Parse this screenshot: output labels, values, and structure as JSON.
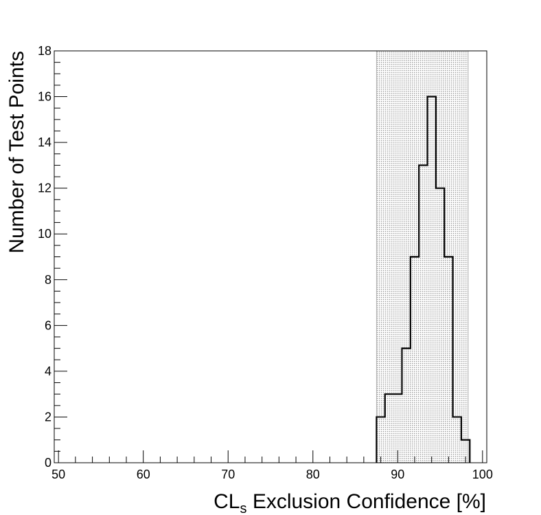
{
  "chart_data": {
    "type": "histogram",
    "title": "",
    "xlabel": {
      "prefix": "CL",
      "subscript": "s",
      "suffix": " Exclusion Confidence [%]"
    },
    "ylabel": "Number of Test Points",
    "xlim": [
      49.5,
      100.5
    ],
    "ylim": [
      0,
      18
    ],
    "x_ticks": [
      50,
      60,
      70,
      80,
      90,
      100
    ],
    "y_ticks": [
      0,
      2,
      4,
      6,
      8,
      10,
      12,
      14,
      16,
      18
    ],
    "bin_width": 1,
    "bins": [
      {
        "x": 87.5,
        "count": 2
      },
      {
        "x": 88.5,
        "count": 3
      },
      {
        "x": 89.5,
        "count": 3
      },
      {
        "x": 90.5,
        "count": 5
      },
      {
        "x": 91.5,
        "count": 9
      },
      {
        "x": 92.5,
        "count": 13
      },
      {
        "x": 93.5,
        "count": 16
      },
      {
        "x": 94.5,
        "count": 12
      },
      {
        "x": 95.5,
        "count": 9
      },
      {
        "x": 96.5,
        "count": 2
      },
      {
        "x": 97.5,
        "count": 1
      }
    ],
    "shaded_band": {
      "x_from": 87.5,
      "x_to": 98.3,
      "color": "#c8c8c8"
    },
    "line_color": "#000000",
    "grid": false,
    "legend": "none"
  }
}
